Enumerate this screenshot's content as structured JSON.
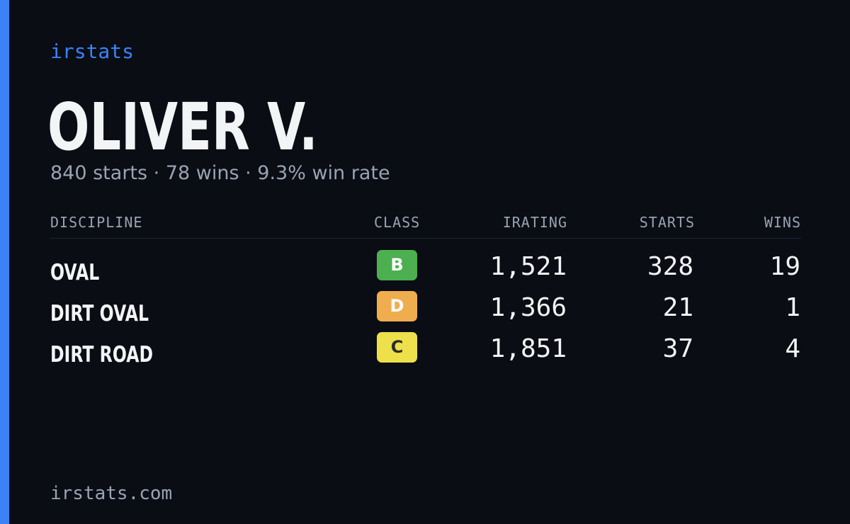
{
  "brand": "irstats",
  "player": {
    "name": "OLIVER V.",
    "summary": "840 starts · 78 wins · 9.3% win rate"
  },
  "table": {
    "headers": {
      "discipline": "DISCIPLINE",
      "class": "CLASS",
      "irating": "IRATING",
      "starts": "STARTS",
      "wins": "WINS"
    },
    "rows": [
      {
        "discipline": "OVAL",
        "class": "B",
        "class_color": "#4caf50",
        "class_text_color": "#ffffff",
        "irating": "1,521",
        "starts": "328",
        "wins": "19"
      },
      {
        "discipline": "DIRT OVAL",
        "class": "D",
        "class_color": "#f0ad4e",
        "class_text_color": "#ffffff",
        "irating": "1,366",
        "starts": "21",
        "wins": "1"
      },
      {
        "discipline": "DIRT ROAD",
        "class": "C",
        "class_color": "#ede04a",
        "class_text_color": "#2b2b2b",
        "irating": "1,851",
        "starts": "37",
        "wins": "4"
      }
    ]
  },
  "footer": "irstats.com",
  "colors": {
    "background": "#0a0d14",
    "accent": "#3b82f6",
    "text_primary": "#f3f4f6",
    "text_muted": "#9aa3b2"
  }
}
